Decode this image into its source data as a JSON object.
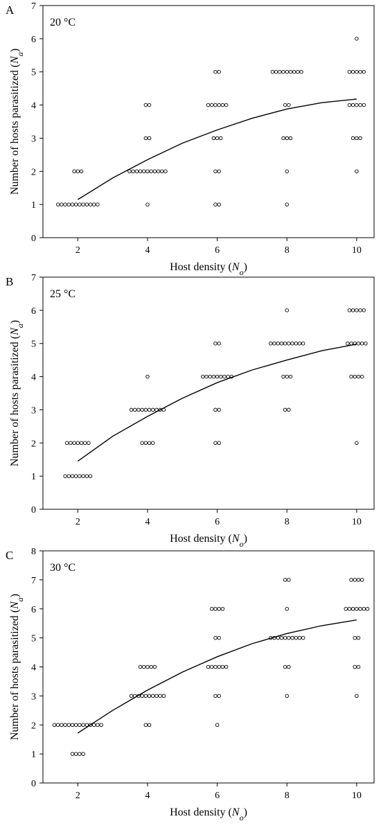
{
  "figure": {
    "x_ticks": [
      2,
      4,
      6,
      8,
      10
    ],
    "x_range": [
      1,
      10.5
    ],
    "marker": "open-circle",
    "line_color": "#000000"
  },
  "chart_data": [
    {
      "type": "scatter",
      "panel_label": "A",
      "annotation": "20 °C",
      "xlabel": "Host density (N_o)",
      "ylabel": "Number of hosts parasitized (N_a)",
      "ylim": [
        0,
        7
      ],
      "y_ticks": [
        0,
        1,
        2,
        3,
        4,
        5,
        6,
        7
      ],
      "points": [
        {
          "x": 2,
          "y": 1,
          "count": 12
        },
        {
          "x": 2,
          "y": 2,
          "count": 3
        },
        {
          "x": 4,
          "y": 1,
          "count": 1
        },
        {
          "x": 4,
          "y": 2,
          "count": 11
        },
        {
          "x": 4,
          "y": 3,
          "count": 2
        },
        {
          "x": 4,
          "y": 4,
          "count": 2
        },
        {
          "x": 6,
          "y": 1,
          "count": 2
        },
        {
          "x": 6,
          "y": 2,
          "count": 2
        },
        {
          "x": 6,
          "y": 3,
          "count": 3
        },
        {
          "x": 6,
          "y": 4,
          "count": 6
        },
        {
          "x": 6,
          "y": 5,
          "count": 2
        },
        {
          "x": 8,
          "y": 1,
          "count": 1
        },
        {
          "x": 8,
          "y": 2,
          "count": 1
        },
        {
          "x": 8,
          "y": 3,
          "count": 3
        },
        {
          "x": 8,
          "y": 4,
          "count": 2
        },
        {
          "x": 8,
          "y": 5,
          "count": 9
        },
        {
          "x": 10,
          "y": 2,
          "count": 1
        },
        {
          "x": 10,
          "y": 3,
          "count": 3
        },
        {
          "x": 10,
          "y": 4,
          "count": 5
        },
        {
          "x": 10,
          "y": 5,
          "count": 5
        },
        {
          "x": 10,
          "y": 6,
          "count": 1
        }
      ],
      "fit_curve": {
        "x": [
          2,
          3,
          4,
          5,
          6,
          7,
          8,
          9,
          10
        ],
        "y": [
          1.15,
          1.8,
          2.35,
          2.85,
          3.25,
          3.6,
          3.88,
          4.07,
          4.18
        ]
      }
    },
    {
      "type": "scatter",
      "panel_label": "B",
      "annotation": "25 °C",
      "xlabel": "Host density (N_o)",
      "ylabel": "Number of hosts parasitized (N_a)",
      "ylim": [
        0,
        7
      ],
      "y_ticks": [
        0,
        1,
        2,
        3,
        4,
        5,
        6,
        7
      ],
      "points": [
        {
          "x": 2,
          "y": 1,
          "count": 8
        },
        {
          "x": 2,
          "y": 2,
          "count": 7
        },
        {
          "x": 4,
          "y": 2,
          "count": 4
        },
        {
          "x": 4,
          "y": 3,
          "count": 10
        },
        {
          "x": 4,
          "y": 4,
          "count": 1
        },
        {
          "x": 6,
          "y": 2,
          "count": 2
        },
        {
          "x": 6,
          "y": 3,
          "count": 2
        },
        {
          "x": 6,
          "y": 4,
          "count": 9
        },
        {
          "x": 6,
          "y": 5,
          "count": 2
        },
        {
          "x": 8,
          "y": 3,
          "count": 2
        },
        {
          "x": 8,
          "y": 4,
          "count": 3
        },
        {
          "x": 8,
          "y": 5,
          "count": 10
        },
        {
          "x": 8,
          "y": 6,
          "count": 1
        },
        {
          "x": 10,
          "y": 2,
          "count": 1
        },
        {
          "x": 10,
          "y": 4,
          "count": 4
        },
        {
          "x": 10,
          "y": 5,
          "count": 6
        },
        {
          "x": 10,
          "y": 6,
          "count": 5
        }
      ],
      "fit_curve": {
        "x": [
          2,
          3,
          4,
          5,
          6,
          7,
          8,
          9,
          10
        ],
        "y": [
          1.45,
          2.2,
          2.8,
          3.35,
          3.82,
          4.2,
          4.5,
          4.78,
          4.98
        ]
      }
    },
    {
      "type": "scatter",
      "panel_label": "C",
      "annotation": "30 °C",
      "xlabel": "Host density (N_o)",
      "ylabel": "Number of hosts parasitized (N_a)",
      "ylim": [
        0,
        8
      ],
      "y_ticks": [
        0,
        1,
        2,
        3,
        4,
        5,
        6,
        7,
        8
      ],
      "points": [
        {
          "x": 2,
          "y": 1,
          "count": 4
        },
        {
          "x": 2,
          "y": 2,
          "count": 14
        },
        {
          "x": 4,
          "y": 2,
          "count": 2
        },
        {
          "x": 4,
          "y": 3,
          "count": 10
        },
        {
          "x": 4,
          "y": 4,
          "count": 5
        },
        {
          "x": 6,
          "y": 2,
          "count": 1
        },
        {
          "x": 6,
          "y": 3,
          "count": 2
        },
        {
          "x": 6,
          "y": 4,
          "count": 6
        },
        {
          "x": 6,
          "y": 5,
          "count": 2
        },
        {
          "x": 6,
          "y": 6,
          "count": 4
        },
        {
          "x": 8,
          "y": 3,
          "count": 1
        },
        {
          "x": 8,
          "y": 4,
          "count": 2
        },
        {
          "x": 8,
          "y": 5,
          "count": 10
        },
        {
          "x": 8,
          "y": 6,
          "count": 1
        },
        {
          "x": 8,
          "y": 7,
          "count": 2
        },
        {
          "x": 10,
          "y": 3,
          "count": 1
        },
        {
          "x": 10,
          "y": 4,
          "count": 2
        },
        {
          "x": 10,
          "y": 5,
          "count": 2
        },
        {
          "x": 10,
          "y": 6,
          "count": 7
        },
        {
          "x": 10,
          "y": 7,
          "count": 4
        }
      ],
      "fit_curve": {
        "x": [
          2,
          3,
          4,
          5,
          6,
          7,
          8,
          9,
          10
        ],
        "y": [
          1.72,
          2.5,
          3.2,
          3.82,
          4.35,
          4.8,
          5.15,
          5.42,
          5.62
        ]
      }
    }
  ]
}
